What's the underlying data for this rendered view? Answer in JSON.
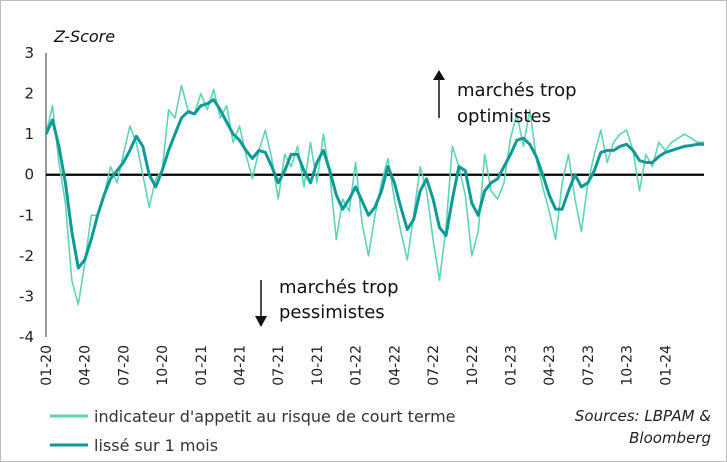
{
  "chart_data": {
    "type": "line",
    "ylabel": "Z-Score",
    "ylim": [
      -4,
      3
    ],
    "yticks": [
      "3",
      "2",
      "1",
      "0",
      "-1",
      "-2",
      "-3",
      "-4"
    ],
    "xticks": [
      "01-20",
      "04-20",
      "07-20",
      "10-20",
      "01-21",
      "04-21",
      "07-21",
      "10-21",
      "01-22",
      "04-22",
      "07-22",
      "10-22",
      "01-23",
      "04-23",
      "07-23",
      "10-23",
      "01-24"
    ],
    "xlim_months": [
      0,
      51
    ],
    "grid": false,
    "zero_line": true,
    "series": [
      {
        "name": "indicateur d'appetit au risque de court terme",
        "color": "#5fd3b6",
        "x_months": [
          0,
          0.5,
          1,
          1.5,
          2,
          2.5,
          3,
          3.5,
          4,
          4.5,
          5,
          5.5,
          6,
          6.5,
          7,
          7.5,
          8,
          8.5,
          9,
          9.5,
          10,
          10.5,
          11,
          11.5,
          12,
          12.5,
          13,
          13.5,
          14,
          14.5,
          15,
          15.5,
          16,
          16.5,
          17,
          17.5,
          18,
          18.5,
          19,
          19.5,
          20,
          20.5,
          21,
          21.5,
          22,
          22.5,
          23,
          23.5,
          24,
          24.5,
          25,
          25.5,
          26,
          26.5,
          27,
          27.5,
          28,
          28.5,
          29,
          29.5,
          30,
          30.5,
          31,
          31.5,
          32,
          32.5,
          33,
          33.5,
          34,
          34.5,
          35,
          35.5,
          36,
          36.5,
          37,
          37.5,
          38,
          38.5,
          39,
          39.5,
          40,
          40.5,
          41,
          41.5,
          42,
          42.5,
          43,
          43.5,
          44,
          44.5,
          45,
          45.5,
          46,
          46.5,
          47,
          47.5,
          48,
          48.5,
          49,
          49.5,
          50,
          50.5,
          51
        ],
        "values": [
          1.0,
          1.7,
          0.3,
          -0.7,
          -2.6,
          -3.2,
          -2.2,
          -1.0,
          -1.0,
          -0.5,
          0.2,
          -0.2,
          0.5,
          1.2,
          0.8,
          0.0,
          -0.8,
          -0.1,
          0.1,
          1.6,
          1.4,
          2.2,
          1.6,
          1.5,
          2.0,
          1.6,
          2.1,
          1.4,
          1.7,
          0.8,
          1.2,
          0.5,
          -0.1,
          0.6,
          1.1,
          0.4,
          -0.6,
          0.5,
          0.2,
          0.7,
          -0.3,
          0.8,
          -0.2,
          1.0,
          0.0,
          -1.6,
          -0.6,
          -0.9,
          0.3,
          -1.2,
          -2.0,
          -1.0,
          -0.2,
          0.4,
          -0.6,
          -1.4,
          -2.1,
          -1.0,
          0.2,
          -0.4,
          -1.6,
          -2.6,
          -1.3,
          0.7,
          0.2,
          -0.5,
          -2.0,
          -1.4,
          0.5,
          -0.4,
          -0.6,
          -0.2,
          0.9,
          1.5,
          0.7,
          1.6,
          0.4,
          -0.3,
          -0.9,
          -1.6,
          -0.2,
          0.5,
          -0.6,
          -1.4,
          -0.2,
          0.5,
          1.1,
          0.3,
          0.8,
          1.0,
          1.1,
          0.6,
          -0.4,
          0.5,
          0.2,
          0.8,
          0.6,
          0.8,
          0.9,
          1.0,
          0.9,
          0.8,
          0.8
        ]
      },
      {
        "name": "lissé sur 1  mois",
        "color": "#0f9a96",
        "x_months": [
          0,
          0.5,
          1,
          1.5,
          2,
          2.5,
          3,
          3.5,
          4,
          4.5,
          5,
          5.5,
          6,
          6.5,
          7,
          7.5,
          8,
          8.5,
          9,
          9.5,
          10,
          10.5,
          11,
          11.5,
          12,
          12.5,
          13,
          13.5,
          14,
          14.5,
          15,
          15.5,
          16,
          16.5,
          17,
          17.5,
          18,
          18.5,
          19,
          19.5,
          20,
          20.5,
          21,
          21.5,
          22,
          22.5,
          23,
          23.5,
          24,
          24.5,
          25,
          25.5,
          26,
          26.5,
          27,
          27.5,
          28,
          28.5,
          29,
          29.5,
          30,
          30.5,
          31,
          31.5,
          32,
          32.5,
          33,
          33.5,
          34,
          34.5,
          35,
          35.5,
          36,
          36.5,
          37,
          37.5,
          38,
          38.5,
          39,
          39.5,
          40,
          40.5,
          41,
          41.5,
          42,
          42.5,
          43,
          43.5,
          44,
          44.5,
          45,
          45.5,
          46,
          46.5,
          47,
          47.5,
          48,
          48.5,
          49,
          49.5,
          50,
          50.5,
          51
        ],
        "values": [
          1.0,
          1.35,
          0.7,
          -0.2,
          -1.4,
          -2.3,
          -2.1,
          -1.6,
          -1.0,
          -0.5,
          -0.1,
          0.1,
          0.3,
          0.6,
          0.95,
          0.7,
          0.0,
          -0.3,
          0.1,
          0.6,
          1.0,
          1.4,
          1.55,
          1.5,
          1.7,
          1.75,
          1.85,
          1.6,
          1.3,
          1.0,
          0.85,
          0.6,
          0.4,
          0.6,
          0.55,
          0.2,
          -0.2,
          0.1,
          0.5,
          0.5,
          0.1,
          -0.2,
          0.3,
          0.6,
          0.1,
          -0.5,
          -0.85,
          -0.6,
          -0.3,
          -0.65,
          -1.0,
          -0.8,
          -0.4,
          0.2,
          -0.2,
          -0.8,
          -1.35,
          -1.1,
          -0.4,
          -0.1,
          -0.6,
          -1.3,
          -1.5,
          -0.6,
          0.2,
          0.1,
          -0.7,
          -1.0,
          -0.4,
          -0.2,
          -0.1,
          0.2,
          0.5,
          0.85,
          0.9,
          0.75,
          0.45,
          0.0,
          -0.5,
          -0.85,
          -0.85,
          -0.4,
          0.0,
          -0.3,
          -0.2,
          0.1,
          0.55,
          0.6,
          0.6,
          0.7,
          0.75,
          0.6,
          0.35,
          0.3,
          0.3,
          0.45,
          0.55,
          0.6,
          0.65,
          0.7,
          0.72,
          0.75,
          0.75
        ]
      }
    ]
  },
  "annotations": {
    "up_line1": "marchés trop",
    "up_line2": "optimistes",
    "down_line1": "marchés trop",
    "down_line2": "pessimistes"
  },
  "source_line1": "Sources: LBPAM &",
  "source_line2": "Bloomberg"
}
